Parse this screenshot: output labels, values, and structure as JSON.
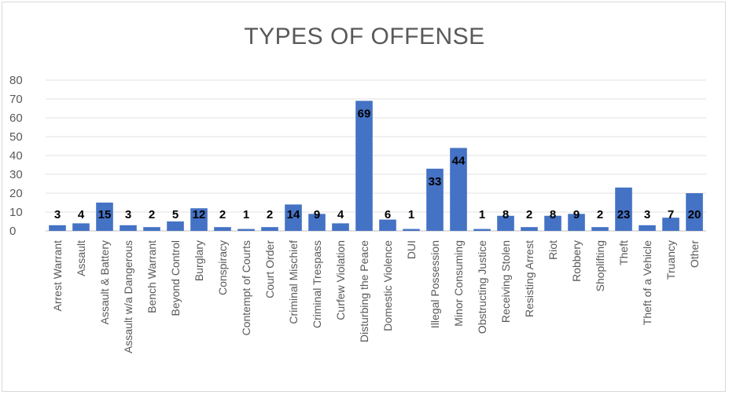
{
  "chart_data": {
    "type": "bar",
    "title": "TYPES OF OFFENSE",
    "xlabel": "",
    "ylabel": "",
    "ylim": [
      0,
      80
    ],
    "yticks": [
      0,
      10,
      20,
      30,
      40,
      50,
      60,
      70,
      80
    ],
    "grid": true,
    "legend": "none",
    "bar_color": "#4472c4",
    "categories": [
      "Arrest Warrant",
      "Assault",
      "Assault & Battery",
      "Assault w/a Dangerous",
      "Bench Warrant",
      "Beyond Control",
      "Burglary",
      "Conspiracy",
      "Contempt of Courts",
      "Court Order",
      "Criminal Mischief",
      "Criminal Trespass",
      "Curfew Violation",
      "Disturbing the Peace",
      "Domestic Violence",
      "DUI",
      "Illegal Possession",
      "Minor Consuming",
      "Obstructing Justice",
      "Receiving Stolen",
      "Resisting Arrest",
      "Riot",
      "Robbery",
      "Shoplifting",
      "Theft",
      "Theft of a Vehicle",
      "Truancy",
      "Other"
    ],
    "values": [
      3,
      4,
      15,
      3,
      2,
      5,
      12,
      2,
      1,
      2,
      14,
      9,
      4,
      69,
      6,
      1,
      33,
      44,
      1,
      8,
      2,
      8,
      9,
      2,
      23,
      3,
      7,
      20
    ]
  }
}
